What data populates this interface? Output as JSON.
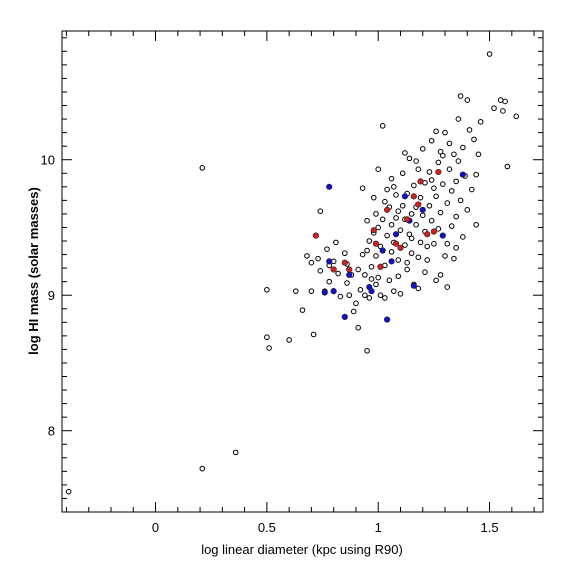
{
  "chart_data": {
    "type": "scatter",
    "title": "",
    "xlabel": "log linear diameter (kpc using R90)",
    "ylabel": "log HI mass (solar masses)",
    "xlim": [
      -0.42,
      1.74
    ],
    "ylim": [
      7.4,
      10.95
    ],
    "x_ticks": [
      0,
      0.5,
      1,
      1.5
    ],
    "x_tick_labels": [
      "0",
      "0.5",
      "1",
      "1.5"
    ],
    "y_ticks": [
      8,
      9,
      10
    ],
    "y_tick_labels": [
      "8",
      "9",
      "10"
    ],
    "grid": false,
    "legend": "none",
    "series": [
      {
        "marker": "open-circle",
        "color": "#000000",
        "points": [
          [
            -0.39,
            7.55
          ],
          [
            0.21,
            7.72
          ],
          [
            0.36,
            7.84
          ],
          [
            0.21,
            9.94
          ],
          [
            0.5,
            9.04
          ],
          [
            0.5,
            8.69
          ],
          [
            0.51,
            8.61
          ],
          [
            0.6,
            8.67
          ],
          [
            0.63,
            9.03
          ],
          [
            0.66,
            8.89
          ],
          [
            0.68,
            9.29
          ],
          [
            0.7,
            9.24
          ],
          [
            0.7,
            9.03
          ],
          [
            0.71,
            8.71
          ],
          [
            0.73,
            9.27
          ],
          [
            0.74,
            9.18
          ],
          [
            0.74,
            9.62
          ],
          [
            0.76,
            9.03
          ],
          [
            0.77,
            9.34
          ],
          [
            0.78,
            9.22
          ],
          [
            0.78,
            9.1
          ],
          [
            0.8,
            9.25
          ],
          [
            0.81,
            9.39
          ],
          [
            0.82,
            9.16
          ],
          [
            0.83,
            8.99
          ],
          [
            0.85,
            9.31
          ],
          [
            0.86,
            9.23
          ],
          [
            0.86,
            9.09
          ],
          [
            0.87,
            9.0
          ],
          [
            0.88,
            9.15
          ],
          [
            0.89,
            8.88
          ],
          [
            0.9,
            8.94
          ],
          [
            0.91,
            8.76
          ],
          [
            0.92,
            9.04
          ],
          [
            0.93,
            9.3
          ],
          [
            0.93,
            9.79
          ],
          [
            0.94,
            9.15
          ],
          [
            0.94,
            9.0
          ],
          [
            0.95,
            8.59
          ],
          [
            0.95,
            9.55
          ],
          [
            0.96,
            9.4
          ],
          [
            0.96,
            8.98
          ],
          [
            0.97,
            9.21
          ],
          [
            0.97,
            9.12
          ],
          [
            0.98,
            9.46
          ],
          [
            0.98,
            9.72
          ],
          [
            0.99,
            9.6
          ],
          [
            0.99,
            9.29
          ],
          [
            1.0,
            9.93
          ],
          [
            1.0,
            9.5
          ],
          [
            1.0,
            9.13
          ],
          [
            1.01,
            9.36
          ],
          [
            1.01,
            9.0
          ],
          [
            1.02,
            10.25
          ],
          [
            1.02,
            9.56
          ],
          [
            1.03,
            9.22
          ],
          [
            1.03,
            8.98
          ],
          [
            1.04,
            9.78
          ],
          [
            1.04,
            9.44
          ],
          [
            1.05,
            9.65
          ],
          [
            1.05,
            9.11
          ],
          [
            1.06,
            9.86
          ],
          [
            1.06,
            9.52
          ],
          [
            1.06,
            9.32
          ],
          [
            1.07,
            9.39
          ],
          [
            1.07,
            9.03
          ],
          [
            1.08,
            9.74
          ],
          [
            1.08,
            9.57
          ],
          [
            1.09,
            9.26
          ],
          [
            1.09,
            9.14
          ],
          [
            1.1,
            9.48
          ],
          [
            1.1,
            9.01
          ],
          [
            1.11,
            9.9
          ],
          [
            1.11,
            9.66
          ],
          [
            1.12,
            9.37
          ],
          [
            1.12,
            9.56
          ],
          [
            1.13,
            9.75
          ],
          [
            1.13,
            9.19
          ],
          [
            1.14,
            9.45
          ],
          [
            1.14,
            10.01
          ],
          [
            1.15,
            9.6
          ],
          [
            1.15,
            9.31
          ],
          [
            1.16,
            9.81
          ],
          [
            1.16,
            9.08
          ],
          [
            1.17,
            9.52
          ],
          [
            1.17,
            9.65
          ],
          [
            1.18,
            9.93
          ],
          [
            1.18,
            9.05
          ],
          [
            1.19,
            9.39
          ],
          [
            1.19,
            9.72
          ],
          [
            1.2,
            10.08
          ],
          [
            1.2,
            9.59
          ],
          [
            1.21,
            9.47
          ],
          [
            1.21,
            9.83
          ],
          [
            1.22,
            9.26
          ],
          [
            1.22,
            9.36
          ],
          [
            1.23,
            9.66
          ],
          [
            1.23,
            9.91
          ],
          [
            1.24,
            10.14
          ],
          [
            1.24,
            9.55
          ],
          [
            1.25,
            9.79
          ],
          [
            1.25,
            9.38
          ],
          [
            1.26,
            9.73
          ],
          [
            1.26,
            10.21
          ],
          [
            1.27,
            9.49
          ],
          [
            1.27,
            9.98
          ],
          [
            1.28,
            9.61
          ],
          [
            1.28,
            9.15
          ],
          [
            1.29,
            10.03
          ],
          [
            1.29,
            9.82
          ],
          [
            1.3,
            9.29
          ],
          [
            1.3,
            10.2
          ],
          [
            1.31,
            9.68
          ],
          [
            1.31,
            9.38
          ],
          [
            1.32,
            9.93
          ],
          [
            1.32,
            10.12
          ],
          [
            1.33,
            9.51
          ],
          [
            1.33,
            9.77
          ],
          [
            1.34,
            10.04
          ],
          [
            1.34,
            9.27
          ],
          [
            1.35,
            9.84
          ],
          [
            1.35,
            9.58
          ],
          [
            1.36,
            10.3
          ],
          [
            1.36,
            9.99
          ],
          [
            1.37,
            9.7
          ],
          [
            1.37,
            10.47
          ],
          [
            1.38,
            9.43
          ],
          [
            1.38,
            10.09
          ],
          [
            1.39,
            9.88
          ],
          [
            1.4,
            10.44
          ],
          [
            1.41,
            10.22
          ],
          [
            1.42,
            9.78
          ],
          [
            1.43,
            10.15
          ],
          [
            1.44,
            9.89
          ],
          [
            1.45,
            10.04
          ],
          [
            1.46,
            10.28
          ],
          [
            1.5,
            10.78
          ],
          [
            1.52,
            10.38
          ],
          [
            1.55,
            10.44
          ],
          [
            1.56,
            10.36
          ],
          [
            1.57,
            10.43
          ],
          [
            1.58,
            9.95
          ],
          [
            1.62,
            10.32
          ],
          [
            1.28,
            10.06
          ],
          [
            1.24,
            9.85
          ],
          [
            1.17,
            9.99
          ],
          [
            1.13,
            9.24
          ],
          [
            1.09,
            9.62
          ],
          [
            1.03,
            9.69
          ],
          [
            0.95,
            9.33
          ],
          [
            0.91,
            9.19
          ],
          [
            1.21,
            9.17
          ],
          [
            1.26,
            9.11
          ],
          [
            1.31,
            9.06
          ],
          [
            1.35,
            9.35
          ],
          [
            1.4,
            9.63
          ],
          [
            1.44,
            9.52
          ],
          [
            1.12,
            10.05
          ],
          [
            1.07,
            9.8
          ],
          [
            0.99,
            9.08
          ],
          [
            1.15,
            9.42
          ],
          [
            1.18,
            9.28
          ]
        ]
      },
      {
        "marker": "filled-circle",
        "color": "#1010d0",
        "points": [
          [
            0.76,
            9.02
          ],
          [
            0.78,
            9.25
          ],
          [
            0.78,
            9.8
          ],
          [
            0.8,
            9.03
          ],
          [
            0.85,
            8.84
          ],
          [
            0.87,
            9.15
          ],
          [
            0.96,
            9.06
          ],
          [
            0.97,
            9.03
          ],
          [
            1.04,
            8.82
          ],
          [
            1.06,
            9.25
          ],
          [
            1.08,
            9.45
          ],
          [
            1.12,
            9.73
          ],
          [
            1.14,
            9.55
          ],
          [
            1.16,
            9.07
          ],
          [
            1.2,
            9.63
          ],
          [
            1.29,
            9.44
          ],
          [
            1.38,
            9.89
          ],
          [
            1.02,
            9.33
          ]
        ]
      },
      {
        "marker": "filled-circle",
        "color": "#d02020",
        "points": [
          [
            0.72,
            9.44
          ],
          [
            0.8,
            9.19
          ],
          [
            0.85,
            9.24
          ],
          [
            0.87,
            9.19
          ],
          [
            0.98,
            9.48
          ],
          [
            0.99,
            9.38
          ],
          [
            1.04,
            9.63
          ],
          [
            1.08,
            9.38
          ],
          [
            1.1,
            9.35
          ],
          [
            1.13,
            9.56
          ],
          [
            1.16,
            9.73
          ],
          [
            1.18,
            9.67
          ],
          [
            1.22,
            9.45
          ],
          [
            1.25,
            9.47
          ],
          [
            1.27,
            9.91
          ],
          [
            1.01,
            9.21
          ],
          [
            1.19,
            9.84
          ]
        ]
      }
    ]
  }
}
